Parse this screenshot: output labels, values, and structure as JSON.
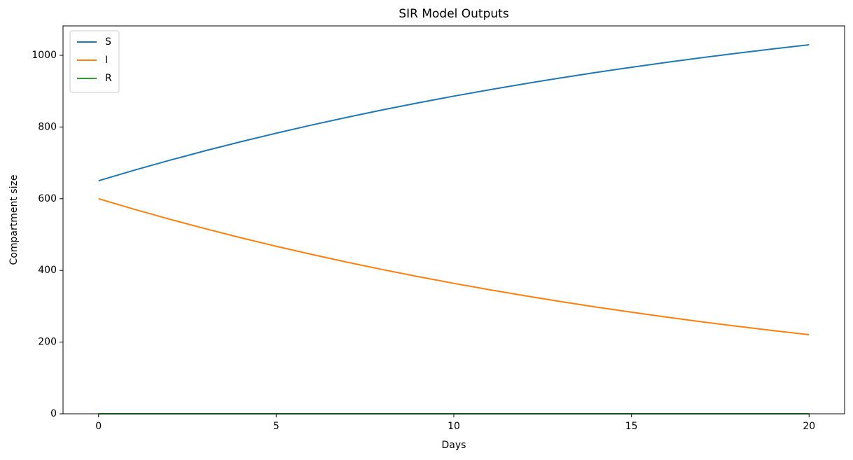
{
  "chart_data": {
    "type": "line",
    "title": "SIR Model Outputs",
    "x_label": "Days",
    "y_label": "Compartment size",
    "x": [
      0,
      1,
      2,
      3,
      4,
      5,
      6,
      7,
      8,
      9,
      10,
      11,
      12,
      13,
      14,
      15,
      16,
      17,
      18,
      19,
      20
    ],
    "series": [
      {
        "name": "S",
        "color": "#1f77b4",
        "values": [
          650,
          679.3,
          707.1,
          733.6,
          758.8,
          782.7,
          805.5,
          827.2,
          847.8,
          867.4,
          886.1,
          903.8,
          920.7,
          936.8,
          952.1,
          966.6,
          980.4,
          993.6,
          1006.1,
          1018,
          1029.3
        ]
      },
      {
        "name": "I",
        "color": "#ff7f0e",
        "values": [
          600,
          570.7,
          542.9,
          516.4,
          491.2,
          467.3,
          444.5,
          422.8,
          402.2,
          382.6,
          363.9,
          346.2,
          329.3,
          313.2,
          297.9,
          283.4,
          269.6,
          256.4,
          243.9,
          232,
          220.7
        ]
      },
      {
        "name": "R",
        "color": "#2ca02c",
        "values": [
          0,
          0,
          0,
          0,
          0,
          0,
          0,
          0,
          0,
          0,
          0,
          0,
          0,
          0,
          0,
          0,
          0,
          0,
          0,
          0,
          0
        ]
      }
    ],
    "xlim": [
      -1,
      21
    ],
    "ylim": [
      0,
      1082
    ],
    "xticks": [
      0,
      5,
      10,
      15,
      20
    ],
    "yticks": [
      0,
      200,
      400,
      600,
      800,
      1000
    ],
    "grid": false,
    "legend": "upper-left"
  }
}
